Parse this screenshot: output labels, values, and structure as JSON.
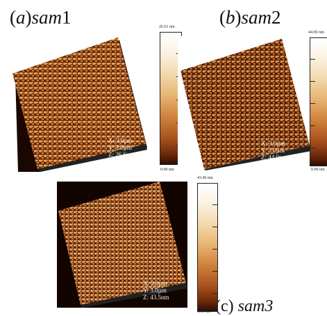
{
  "panels": [
    {
      "id": "a",
      "title_prefix": "(",
      "title_letter": "a",
      "title_sep": ")",
      "title_name": "sam",
      "title_num": "1",
      "scale": {
        "x": "X: 3.0µm",
        "y": "Y: 3.0µm",
        "z": "Z: 26.6nm"
      },
      "colorbar": {
        "max": "26.61 nm",
        "min": "0.00 nm"
      }
    },
    {
      "id": "b",
      "title_prefix": "(",
      "title_letter": "b",
      "title_sep": ")",
      "title_name": "sam",
      "title_num": "2",
      "scale": {
        "x": "X: 3.0µm",
        "y": "Y: 3.0µm",
        "z": "Z: 44.0nm"
      },
      "colorbar": {
        "max": "44.00 nm",
        "min": "0.00 nm"
      }
    },
    {
      "id": "c",
      "title": "(c) ",
      "title_name": "sam3",
      "scale": {
        "x": "X: 3.0µm",
        "y": "Y: 3.0µm",
        "z": "Z: 43.5nm"
      },
      "colorbar": {
        "max": "43.46 nm",
        "min": "0.00 nm"
      }
    }
  ],
  "colors": {
    "surface_dark": "#2a0d02",
    "surface_light": "#f3c27a",
    "background": "#ffffff"
  }
}
